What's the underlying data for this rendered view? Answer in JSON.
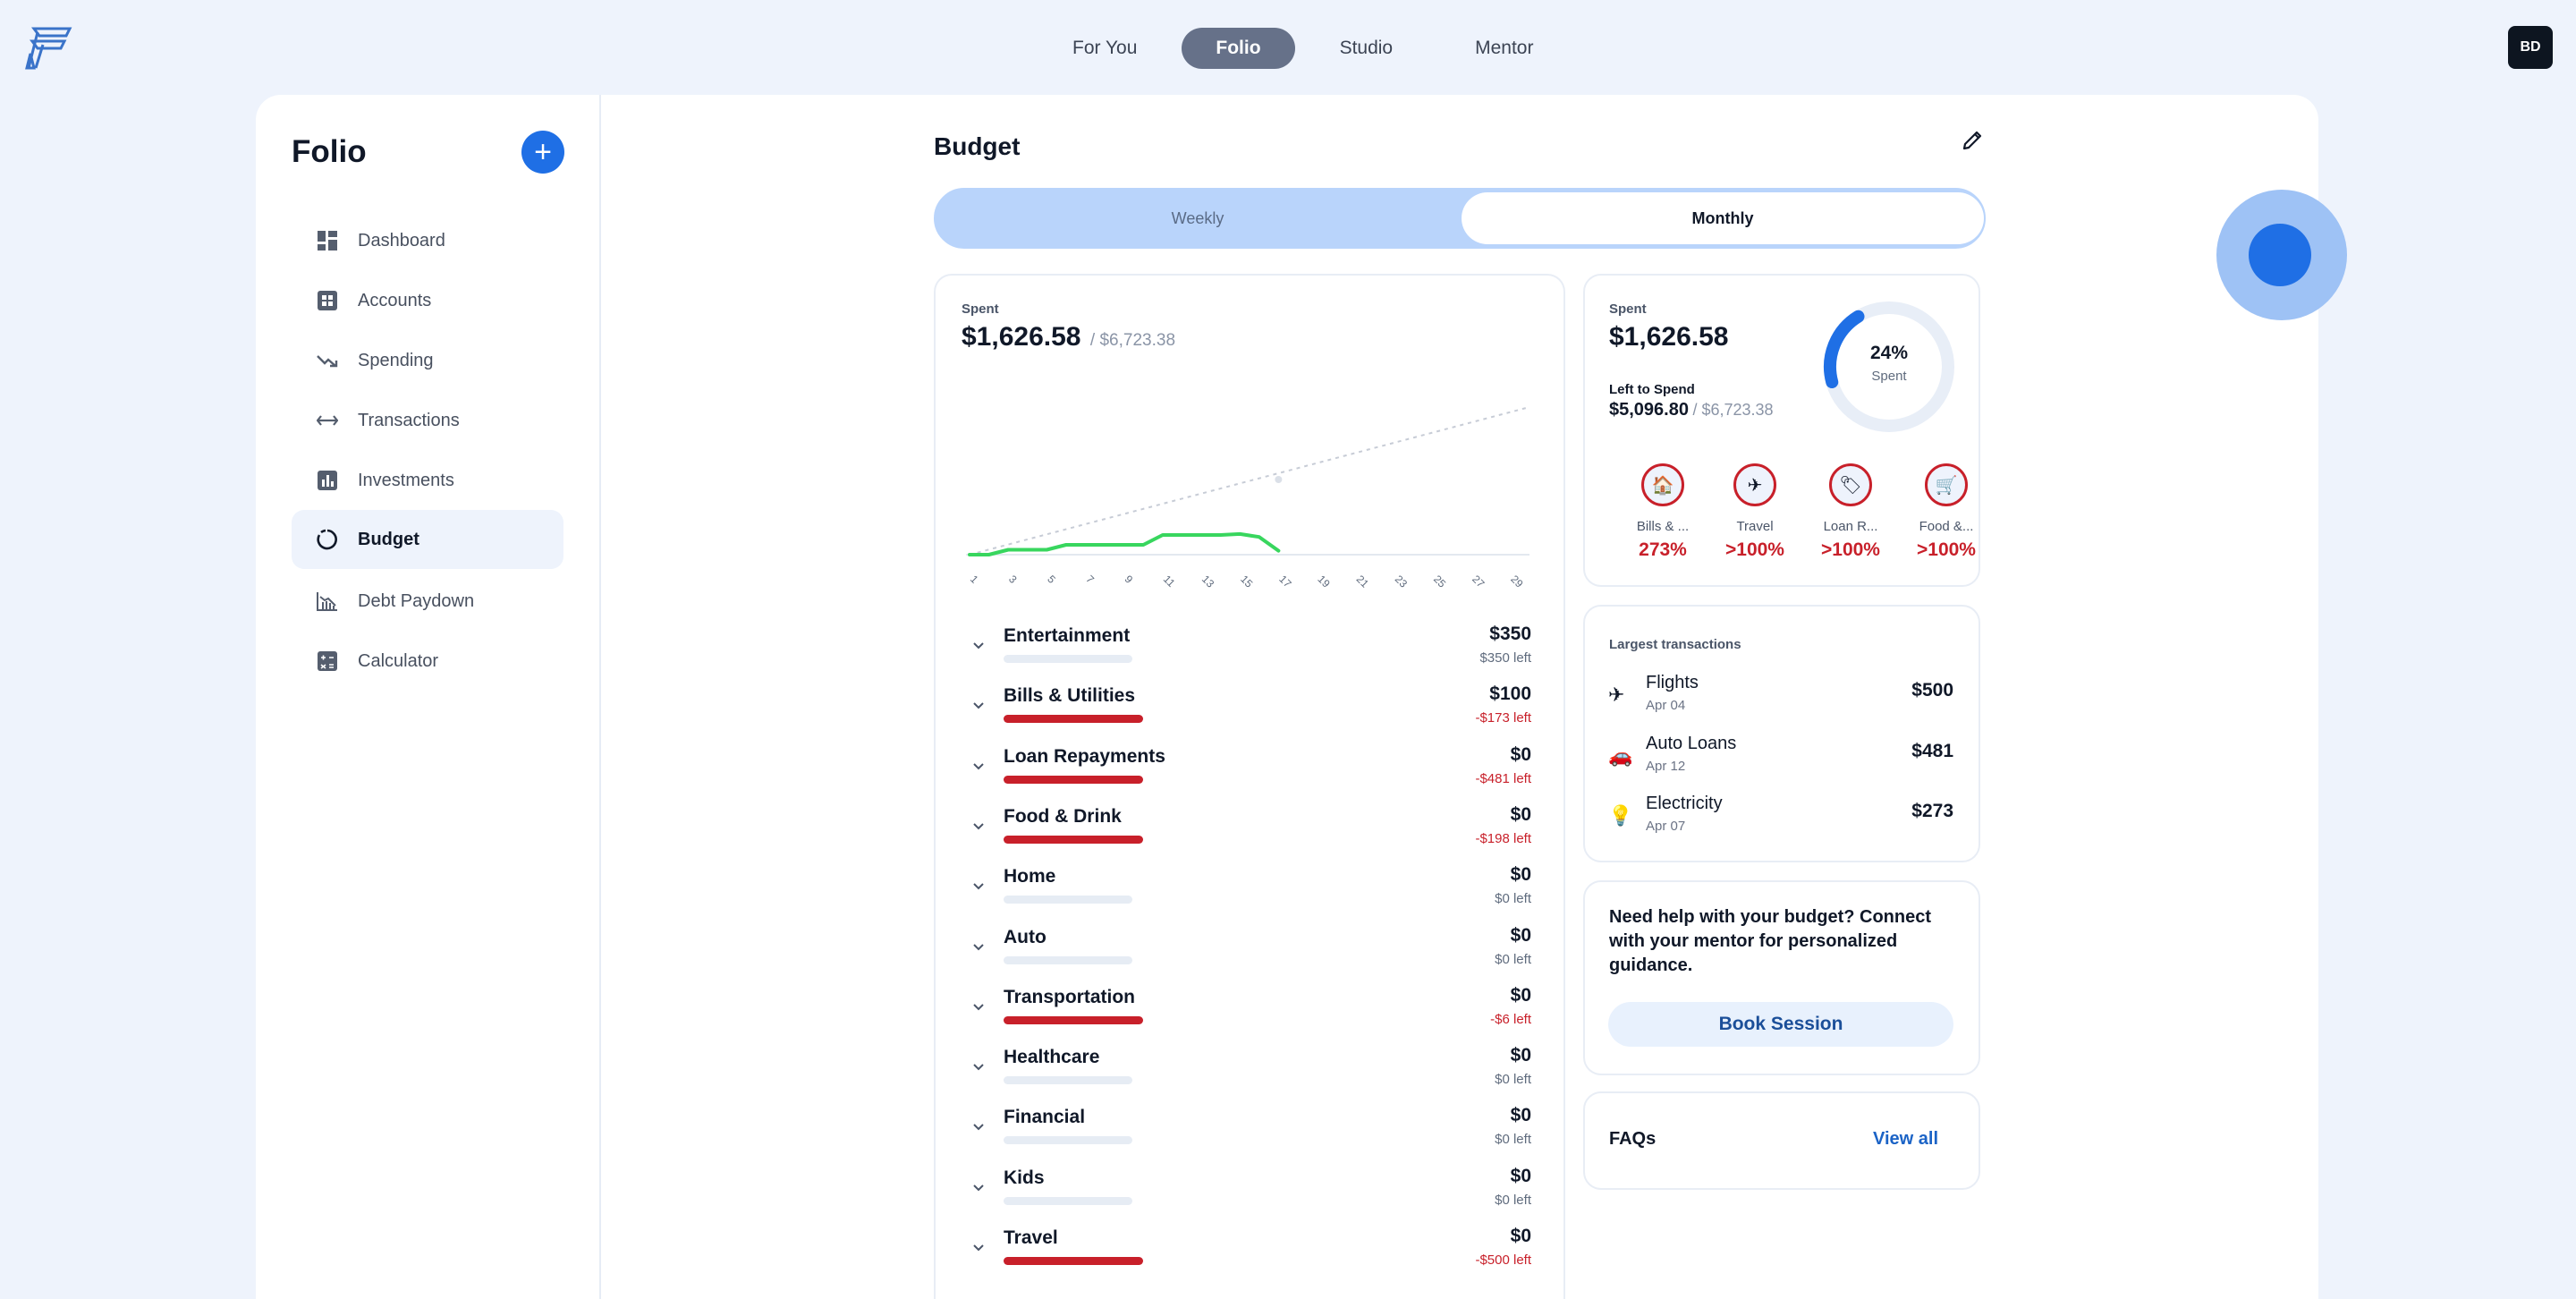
{
  "topnav": {
    "items": [
      "For You",
      "Folio",
      "Studio",
      "Mentor"
    ],
    "active": "Folio"
  },
  "avatar": {
    "initials": "BD"
  },
  "sidebar": {
    "title": "Folio",
    "add_label": "+",
    "items": [
      {
        "label": "Dashboard",
        "icon": "dashboard-icon"
      },
      {
        "label": "Accounts",
        "icon": "accounts-icon"
      },
      {
        "label": "Spending",
        "icon": "spending-icon"
      },
      {
        "label": "Transactions",
        "icon": "transactions-icon"
      },
      {
        "label": "Investments",
        "icon": "investments-icon"
      },
      {
        "label": "Budget",
        "icon": "budget-icon",
        "active": true
      },
      {
        "label": "Debt Paydown",
        "icon": "debt-icon"
      },
      {
        "label": "Calculator",
        "icon": "calculator-icon"
      }
    ]
  },
  "budget": {
    "title": "Budget",
    "toggle": {
      "weekly": "Weekly",
      "monthly": "Monthly",
      "selected": "Monthly"
    },
    "spent_label": "Spent",
    "spent_amount": "$1,626.58",
    "spent_total": "/ $6,723.38"
  },
  "chart_data": {
    "type": "line",
    "x_ticks": [
      "1",
      "3",
      "5",
      "7",
      "9",
      "11",
      "13",
      "15",
      "17",
      "19",
      "21",
      "23",
      "25",
      "27",
      "29"
    ],
    "series": [
      {
        "values": [
          [
            1,
            0
          ],
          [
            2,
            0
          ],
          [
            3,
            40
          ],
          [
            4,
            40
          ],
          [
            5,
            40
          ],
          [
            6,
            80
          ],
          [
            7,
            80
          ],
          [
            8,
            80
          ],
          [
            9,
            80
          ],
          [
            10,
            80
          ],
          [
            11,
            160
          ],
          [
            12,
            160
          ],
          [
            13,
            160
          ],
          [
            14,
            160
          ],
          [
            15,
            170
          ],
          [
            16,
            150
          ],
          [
            17,
            30
          ]
        ]
      }
    ],
    "projection": {
      "from": [
        1,
        0
      ],
      "to": [
        30,
        1100
      ]
    },
    "marker": {
      "x": 17,
      "y": 560
    },
    "colors": {
      "actual": "#38d65e",
      "projection": "#c7ccd6"
    }
  },
  "categories": [
    {
      "name": "Entertainment",
      "amount": "$350",
      "left": "$350 left",
      "over": false
    },
    {
      "name": "Bills & Utilities",
      "amount": "$100",
      "left": "-$173 left",
      "over": true
    },
    {
      "name": "Loan Repayments",
      "amount": "$0",
      "left": "-$481 left",
      "over": true
    },
    {
      "name": "Food & Drink",
      "amount": "$0",
      "left": "-$198 left",
      "over": true
    },
    {
      "name": "Home",
      "amount": "$0",
      "left": "$0 left",
      "over": false
    },
    {
      "name": "Auto",
      "amount": "$0",
      "left": "$0 left",
      "over": false
    },
    {
      "name": "Transportation",
      "amount": "$0",
      "left": "-$6 left",
      "over": true
    },
    {
      "name": "Healthcare",
      "amount": "$0",
      "left": "$0 left",
      "over": false
    },
    {
      "name": "Financial",
      "amount": "$0",
      "left": "$0 left",
      "over": false
    },
    {
      "name": "Kids",
      "amount": "$0",
      "left": "$0 left",
      "over": false
    },
    {
      "name": "Travel",
      "amount": "$0",
      "left": "-$500 left",
      "over": true
    }
  ],
  "summary": {
    "spent_label": "Spent",
    "spent_amount": "$1,626.58",
    "left_label": "Left to Spend",
    "left_amount": "$5,096.80",
    "left_total": "/ $6,723.38",
    "gauge_pct": "24%",
    "gauge_label": "Spent",
    "gauge_fraction": 0.24,
    "top_categories": [
      {
        "label": "Bills & ...",
        "pct": "273%",
        "icon": "🏠"
      },
      {
        "label": "Travel",
        "pct": ">100%",
        "icon": "✈"
      },
      {
        "label": "Loan R...",
        "pct": ">100%",
        "icon": "🏷"
      },
      {
        "label": "Food &...",
        "pct": ">100%",
        "icon": "🛒"
      }
    ]
  },
  "largest": {
    "title": "Largest transactions",
    "items": [
      {
        "name": "Flights",
        "date": "Apr 04",
        "amount": "$500",
        "icon": "✈"
      },
      {
        "name": "Auto Loans",
        "date": "Apr 12",
        "amount": "$481",
        "icon": "🚗"
      },
      {
        "name": "Electricity",
        "date": "Apr 07",
        "amount": "$273",
        "icon": "💡"
      }
    ]
  },
  "mentor": {
    "text": "Need help with your budget? Connect with your mentor for personalized guidance.",
    "button": "Book Session"
  },
  "faqs": {
    "title": "FAQs",
    "link": "View all"
  }
}
